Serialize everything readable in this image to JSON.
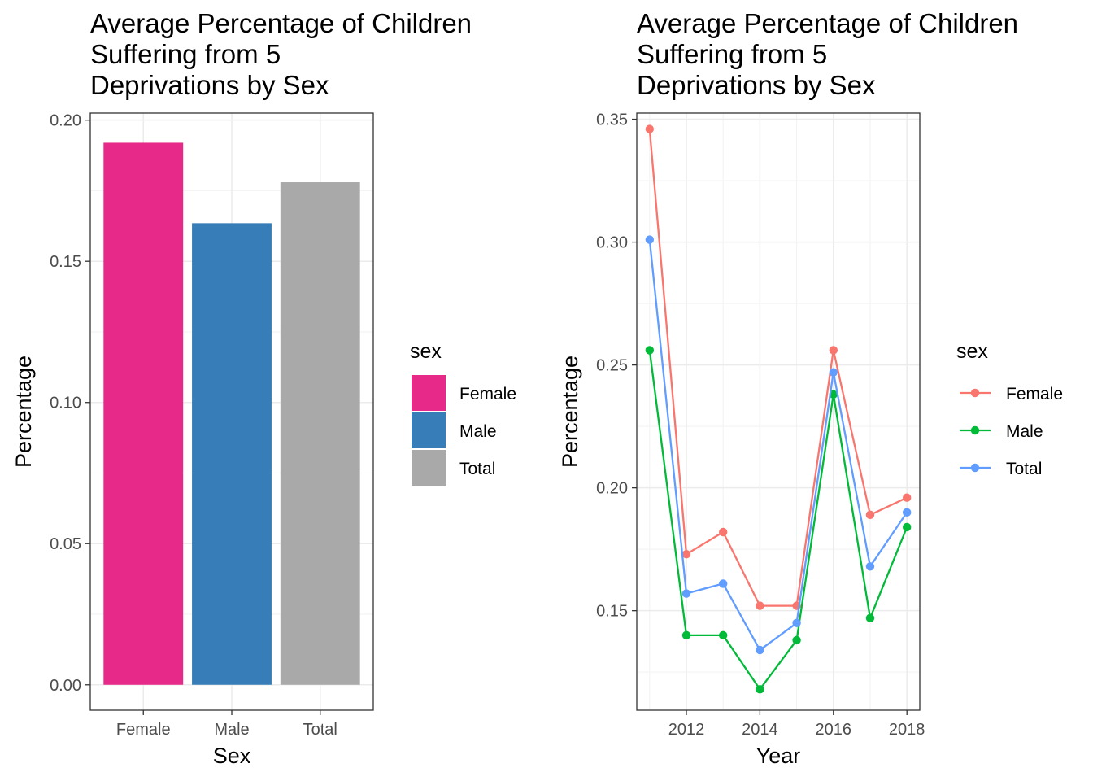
{
  "chart_data": [
    {
      "type": "bar",
      "title_lines": [
        "Average Percentage of Children",
        "Suffering from 5",
        "Deprivations by Sex"
      ],
      "xlabel": "Sex",
      "ylabel": "Percentage",
      "categories": [
        "Female",
        "Male",
        "Total"
      ],
      "values": [
        0.192,
        0.1635,
        0.178
      ],
      "colors": [
        "#E7298A",
        "#377EB8",
        "#A9A9A9"
      ],
      "ylim": [
        -0.009,
        0.2025
      ],
      "yticks": [
        0.0,
        0.05,
        0.1,
        0.15,
        0.2
      ],
      "ytick_labels": [
        "0.00",
        "0.05",
        "0.10",
        "0.15",
        "0.20"
      ],
      "grid": true,
      "legend": {
        "title": "sex",
        "position": "right",
        "entries": [
          "Female",
          "Male",
          "Total"
        ]
      }
    },
    {
      "type": "line",
      "title_lines": [
        "Average Percentage of Children",
        "Suffering from 5",
        "Deprivations by Sex"
      ],
      "xlabel": "Year",
      "ylabel": "Percentage",
      "x": [
        2011,
        2012,
        2013,
        2014,
        2015,
        2016,
        2017,
        2018
      ],
      "series": [
        {
          "name": "Female",
          "color": "#F8766D",
          "values": [
            0.346,
            0.173,
            0.182,
            0.152,
            0.152,
            0.256,
            0.189,
            0.196
          ]
        },
        {
          "name": "Male",
          "color": "#00BA38",
          "values": [
            0.256,
            0.14,
            0.14,
            0.118,
            0.138,
            0.238,
            0.147,
            0.184
          ]
        },
        {
          "name": "Total",
          "color": "#619CFF",
          "values": [
            0.301,
            0.157,
            0.161,
            0.134,
            0.145,
            0.247,
            0.168,
            0.19
          ]
        }
      ],
      "xlim": [
        2010.65,
        2018.35
      ],
      "ylim": [
        0.1095,
        0.3525
      ],
      "xticks": [
        2012,
        2014,
        2016,
        2018
      ],
      "xtick_labels": [
        "2012",
        "2014",
        "2016",
        "2018"
      ],
      "yticks": [
        0.15,
        0.2,
        0.25,
        0.3,
        0.35
      ],
      "ytick_labels": [
        "0.15",
        "0.20",
        "0.25",
        "0.30",
        "0.35"
      ],
      "grid": true,
      "legend": {
        "title": "sex",
        "position": "right",
        "entries": [
          "Female",
          "Male",
          "Total"
        ]
      }
    }
  ]
}
